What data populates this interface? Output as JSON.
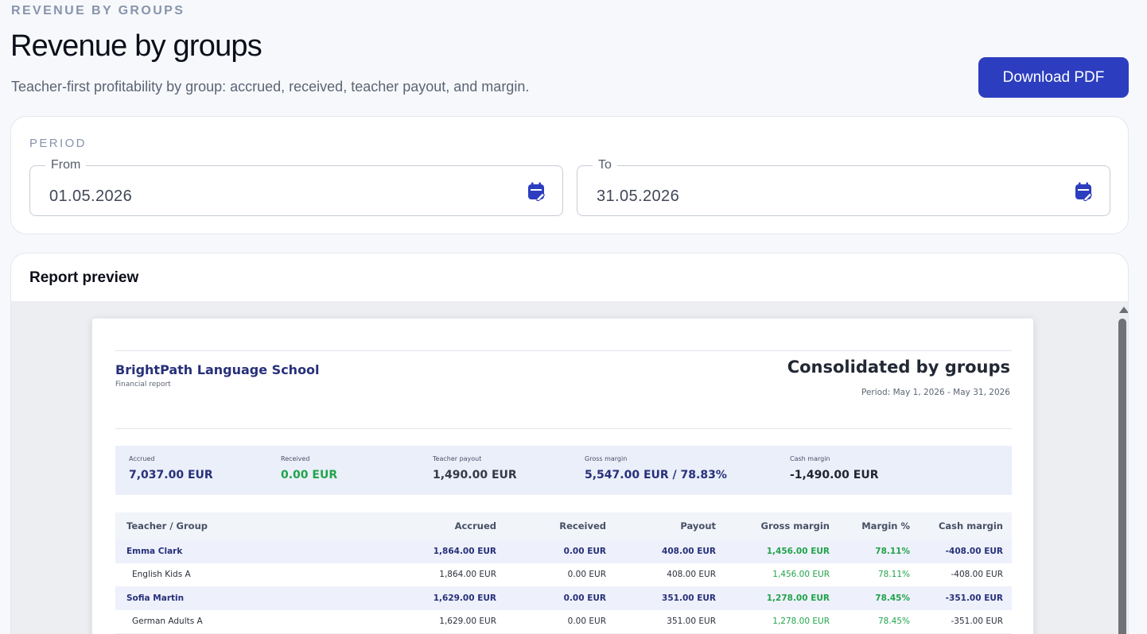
{
  "header": {
    "eyebrow": "REVENUE BY GROUPS",
    "title": "Revenue by groups",
    "subtitle": "Teacher-first profitability by group: accrued, received, teacher payout, and margin.",
    "download_label": "Download PDF"
  },
  "period": {
    "label": "PERIOD",
    "from_label": "From",
    "from_value": "01.05.2026",
    "to_label": "To",
    "to_value": "31.05.2026",
    "icon": "calendar-edit-icon"
  },
  "preview": {
    "title": "Report preview"
  },
  "report": {
    "school": "BrightPath Language School",
    "subtitle": "Financial report",
    "heading": "Consolidated by groups",
    "period": "Period: May 1, 2026 - May 31, 2026",
    "summary": {
      "accrued_label": "Accrued",
      "accrued_value": "7,037.00 EUR",
      "received_label": "Received",
      "received_value": "0.00 EUR",
      "payout_label": "Teacher payout",
      "payout_value": "1,490.00 EUR",
      "gross_label": "Gross margin",
      "gross_value": "5,547.00 EUR / 78.83%",
      "cash_label": "Cash margin",
      "cash_value": "-1,490.00 EUR"
    },
    "columns": [
      "Teacher / Group",
      "Accrued",
      "Received",
      "Payout",
      "Gross margin",
      "Margin %",
      "Cash margin"
    ],
    "rows": [
      {
        "type": "teacher",
        "cells": [
          "Emma Clark",
          "1,864.00 EUR",
          "0.00 EUR",
          "408.00 EUR",
          "1,456.00 EUR",
          "78.11%",
          "-408.00 EUR"
        ]
      },
      {
        "type": "group",
        "cells": [
          "English Kids A",
          "1,864.00 EUR",
          "0.00 EUR",
          "408.00 EUR",
          "1,456.00 EUR",
          "78.11%",
          "-408.00 EUR"
        ]
      },
      {
        "type": "teacher",
        "cells": [
          "Sofia Martin",
          "1,629.00 EUR",
          "0.00 EUR",
          "351.00 EUR",
          "1,278.00 EUR",
          "78.45%",
          "-351.00 EUR"
        ]
      },
      {
        "type": "group",
        "cells": [
          "German Adults A",
          "1,629.00 EUR",
          "0.00 EUR",
          "351.00 EUR",
          "1,278.00 EUR",
          "78.45%",
          "-351.00 EUR"
        ]
      }
    ]
  },
  "colors": {
    "primary": "#2c3ebf",
    "navy": "#27307a",
    "positive": "#22a34a"
  }
}
